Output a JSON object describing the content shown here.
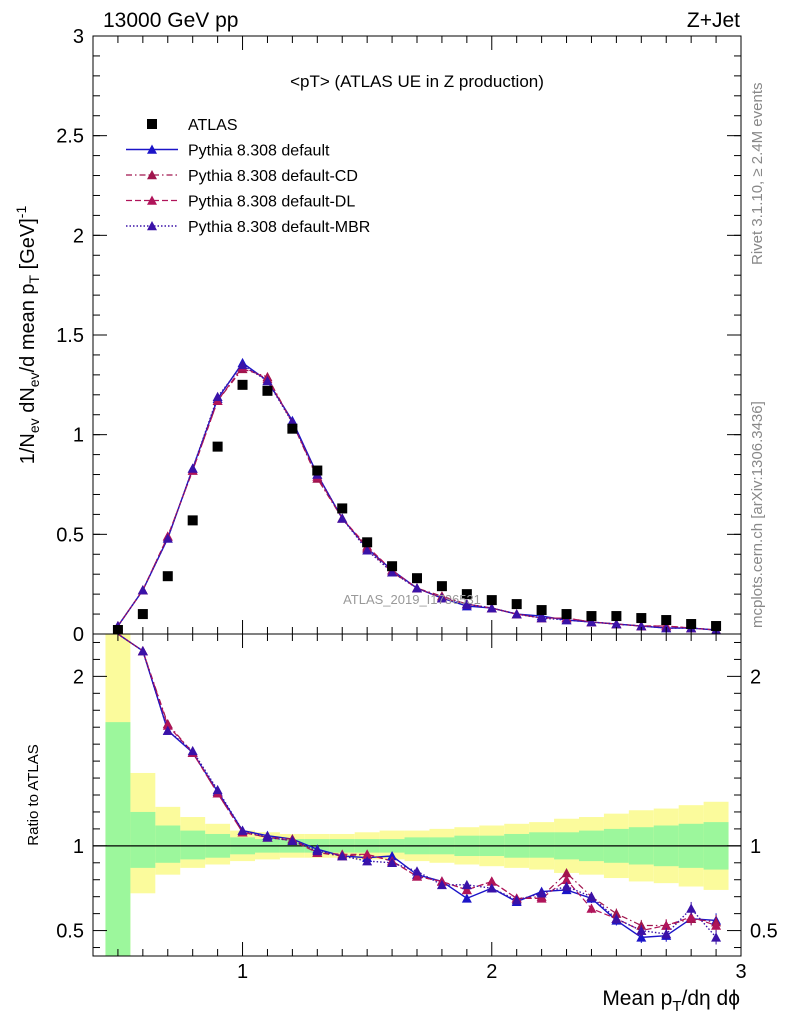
{
  "header": {
    "left_text": "13000 GeV pp",
    "right_text": "Z+Jet"
  },
  "side_texts": {
    "rivet": "Rivet 3.1.10, ≥ 2.4M events",
    "mcplots": "mcplots.cern.ch [arXiv:1306.3436]"
  },
  "watermark": "ATLAS_2019_I1736531",
  "colors": {
    "data": "#000000",
    "default": "#1b14c8",
    "cd": "#a0154d",
    "dl": "#b0145a",
    "mbr": "#3a12a8",
    "band_inner": "#9cf79c",
    "band_outer": "#fbfb9c"
  },
  "chart_data": [
    {
      "type": "scatter",
      "title": "<pT> (ATLAS UE in Z production)",
      "ylabel_main": "1/N",
      "ylabel_sub_ev": "ev",
      "ylabel_mid": " dN",
      "ylabel_mid2": "/d mean p",
      "ylabel_sub_T": "T",
      "ylabel_unit": " [GeV]",
      "ylabel_sup": "-1",
      "xlim": [
        0.4,
        3.0
      ],
      "ylim": [
        0,
        3.0
      ],
      "y_ticks": [
        "0",
        "0.5",
        "1",
        "1.5",
        "2",
        "2.5",
        "3"
      ],
      "legend": [
        "ATLAS",
        "Pythia 8.308 default",
        "Pythia 8.308 default-CD",
        "Pythia 8.308 default-DL",
        "Pythia 8.308 default-MBR"
      ],
      "x": [
        0.5,
        0.6,
        0.7,
        0.8,
        0.9,
        1.0,
        1.1,
        1.2,
        1.3,
        1.4,
        1.5,
        1.6,
        1.7,
        1.8,
        1.9,
        2.0,
        2.1,
        2.2,
        2.3,
        2.4,
        2.5,
        2.6,
        2.7,
        2.8,
        2.9
      ],
      "series": [
        {
          "name": "ATLAS",
          "values": [
            0.02,
            0.1,
            0.29,
            0.57,
            0.94,
            1.25,
            1.22,
            1.03,
            0.82,
            0.63,
            0.46,
            0.34,
            0.28,
            0.24,
            0.2,
            0.17,
            0.15,
            0.12,
            0.1,
            0.09,
            0.09,
            0.08,
            0.07,
            0.05,
            0.04
          ]
        },
        {
          "name": "Pythia 8.308 default",
          "values": [
            0.04,
            0.22,
            0.48,
            0.83,
            1.18,
            1.36,
            1.27,
            1.07,
            0.8,
            0.58,
            0.43,
            0.32,
            0.23,
            0.18,
            0.14,
            0.13,
            0.1,
            0.09,
            0.07,
            0.06,
            0.05,
            0.04,
            0.03,
            0.03,
            0.02
          ]
        },
        {
          "name": "Pythia 8.308 default-CD",
          "values": [
            0.04,
            0.22,
            0.49,
            0.82,
            1.17,
            1.33,
            1.29,
            1.06,
            0.78,
            0.58,
            0.43,
            0.31,
            0.23,
            0.19,
            0.15,
            0.13,
            0.1,
            0.08,
            0.08,
            0.06,
            0.05,
            0.04,
            0.04,
            0.03,
            0.02
          ]
        },
        {
          "name": "Pythia 8.308 default-DL",
          "values": [
            0.04,
            0.22,
            0.49,
            0.82,
            1.17,
            1.34,
            1.28,
            1.06,
            0.79,
            0.58,
            0.44,
            0.32,
            0.23,
            0.18,
            0.15,
            0.13,
            0.1,
            0.08,
            0.08,
            0.06,
            0.05,
            0.04,
            0.04,
            0.03,
            0.02
          ]
        },
        {
          "name": "Pythia 8.308 default-MBR",
          "values": [
            0.04,
            0.22,
            0.48,
            0.83,
            1.19,
            1.35,
            1.27,
            1.06,
            0.8,
            0.58,
            0.42,
            0.31,
            0.23,
            0.18,
            0.15,
            0.13,
            0.1,
            0.08,
            0.07,
            0.06,
            0.05,
            0.04,
            0.03,
            0.03,
            0.02
          ]
        }
      ]
    },
    {
      "type": "scatter",
      "title": "",
      "ylabel": "Ratio to ATLAS",
      "xlabel_main": "Mean p",
      "xlabel_sub": "T",
      "xlabel_rest": "/dη dϕ",
      "xlim": [
        0.4,
        3.0
      ],
      "ylim": [
        0.35,
        2.25
      ],
      "x_ticks": [
        "1",
        "2",
        "3"
      ],
      "y_ticks": [
        "0.5",
        "1",
        "2"
      ],
      "x": [
        0.5,
        0.6,
        0.7,
        0.8,
        0.9,
        1.0,
        1.1,
        1.2,
        1.3,
        1.4,
        1.5,
        1.6,
        1.7,
        1.8,
        1.9,
        2.0,
        2.1,
        2.2,
        2.3,
        2.4,
        2.5,
        2.6,
        2.7,
        2.8,
        2.9
      ],
      "band_inner": {
        "lower": [
          0.35,
          0.87,
          0.9,
          0.92,
          0.93,
          0.95,
          0.96,
          0.96,
          0.96,
          0.96,
          0.96,
          0.96,
          0.95,
          0.95,
          0.94,
          0.94,
          0.93,
          0.93,
          0.92,
          0.91,
          0.9,
          0.89,
          0.88,
          0.87,
          0.86
        ],
        "upper": [
          1.73,
          1.2,
          1.12,
          1.09,
          1.07,
          1.05,
          1.04,
          1.04,
          1.04,
          1.04,
          1.04,
          1.04,
          1.05,
          1.05,
          1.06,
          1.06,
          1.07,
          1.08,
          1.08,
          1.09,
          1.1,
          1.11,
          1.12,
          1.13,
          1.14
        ]
      },
      "band_outer": {
        "lower": [
          0.35,
          0.72,
          0.83,
          0.87,
          0.89,
          0.91,
          0.92,
          0.93,
          0.93,
          0.93,
          0.92,
          0.92,
          0.91,
          0.9,
          0.89,
          0.88,
          0.87,
          0.86,
          0.84,
          0.83,
          0.81,
          0.79,
          0.78,
          0.76,
          0.74
        ],
        "upper": [
          2.25,
          1.43,
          1.23,
          1.17,
          1.13,
          1.09,
          1.08,
          1.07,
          1.07,
          1.07,
          1.08,
          1.09,
          1.09,
          1.1,
          1.11,
          1.12,
          1.13,
          1.14,
          1.16,
          1.17,
          1.19,
          1.21,
          1.22,
          1.24,
          1.26
        ]
      },
      "series": [
        {
          "name": "Pythia 8.308 default",
          "values": [
            2.3,
            2.15,
            1.68,
            1.55,
            1.32,
            1.09,
            1.06,
            1.04,
            0.98,
            0.94,
            0.93,
            0.94,
            0.83,
            0.79,
            0.69,
            0.75,
            0.67,
            0.73,
            0.74,
            0.69,
            0.56,
            0.46,
            0.47,
            0.57,
            0.56
          ]
        },
        {
          "name": "Pythia 8.308 default-CD",
          "values": [
            2.3,
            2.15,
            1.72,
            1.55,
            1.31,
            1.08,
            1.05,
            1.04,
            0.96,
            0.94,
            0.95,
            0.91,
            0.82,
            0.79,
            0.74,
            0.79,
            0.69,
            0.7,
            0.84,
            0.7,
            0.6,
            0.53,
            0.53,
            0.57,
            0.55
          ]
        },
        {
          "name": "Pythia 8.308 default-DL",
          "values": [
            2.3,
            2.15,
            1.71,
            1.55,
            1.31,
            1.08,
            1.05,
            1.03,
            0.96,
            0.95,
            0.95,
            0.91,
            0.82,
            0.79,
            0.74,
            0.79,
            0.69,
            0.69,
            0.8,
            0.63,
            0.57,
            0.5,
            0.53,
            0.58,
            0.53
          ]
        },
        {
          "name": "Pythia 8.308 default-MBR",
          "values": [
            2.3,
            2.15,
            1.68,
            1.56,
            1.33,
            1.09,
            1.05,
            1.03,
            0.97,
            0.94,
            0.91,
            0.9,
            0.85,
            0.77,
            0.77,
            0.75,
            0.68,
            0.72,
            0.76,
            0.7,
            0.57,
            0.5,
            0.48,
            0.63,
            0.46
          ]
        }
      ]
    }
  ]
}
